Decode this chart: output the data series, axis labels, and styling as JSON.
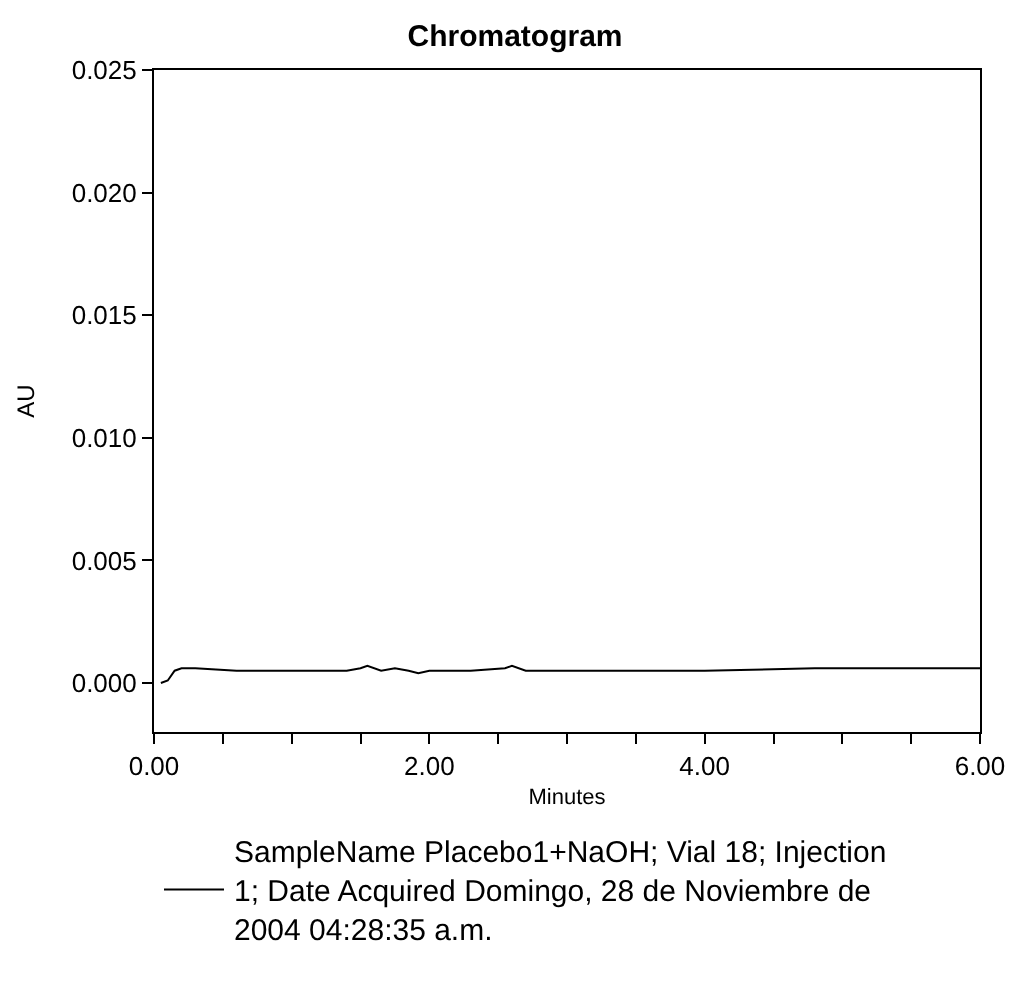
{
  "chart_data": {
    "type": "line",
    "title": "Chromatogram",
    "xlabel": "Minutes",
    "ylabel": "AU",
    "xlim": [
      0,
      6
    ],
    "ylim": [
      -0.002,
      0.025
    ],
    "xticks": [
      {
        "value": 0,
        "label": "0.00"
      },
      {
        "value": 0.5,
        "label": null
      },
      {
        "value": 1,
        "label": null
      },
      {
        "value": 1.5,
        "label": null
      },
      {
        "value": 2,
        "label": "2.00"
      },
      {
        "value": 2.5,
        "label": null
      },
      {
        "value": 3,
        "label": null
      },
      {
        "value": 3.5,
        "label": null
      },
      {
        "value": 4,
        "label": "4.00"
      },
      {
        "value": 4.5,
        "label": null
      },
      {
        "value": 5,
        "label": null
      },
      {
        "value": 5.5,
        "label": null
      },
      {
        "value": 6,
        "label": "6.00"
      }
    ],
    "yticks": [
      {
        "value": 0,
        "label": "0.000"
      },
      {
        "value": 0.005,
        "label": "0.005"
      },
      {
        "value": 0.01,
        "label": "0.010"
      },
      {
        "value": 0.015,
        "label": "0.015"
      },
      {
        "value": 0.02,
        "label": "0.020"
      },
      {
        "value": 0.025,
        "label": "0.025"
      }
    ],
    "x": [
      0.05,
      0.1,
      0.15,
      0.2,
      0.3,
      0.6,
      1.0,
      1.4,
      1.5,
      1.55,
      1.65,
      1.75,
      1.85,
      1.92,
      2.0,
      2.3,
      2.55,
      2.6,
      2.7,
      3.0,
      3.5,
      4.0,
      4.8,
      5.5,
      6.0
    ],
    "series": [
      {
        "name": "SampleName Placebo1+NaOH; Vial 18; Injection 1; Date Acquired Domingo, 28 de Noviembre de 2004 04:28:35 a.m.",
        "color": "#000000",
        "values": [
          0.0,
          0.0001,
          0.0005,
          0.0006,
          0.0006,
          0.0005,
          0.0005,
          0.0005,
          0.0006,
          0.0007,
          0.0005,
          0.0006,
          0.0005,
          0.0004,
          0.0005,
          0.0005,
          0.0006,
          0.0007,
          0.0005,
          0.0005,
          0.0005,
          0.0005,
          0.0006,
          0.0006,
          0.0006
        ]
      }
    ],
    "legend": "bottom",
    "line_style": "solid",
    "marker": "none"
  }
}
